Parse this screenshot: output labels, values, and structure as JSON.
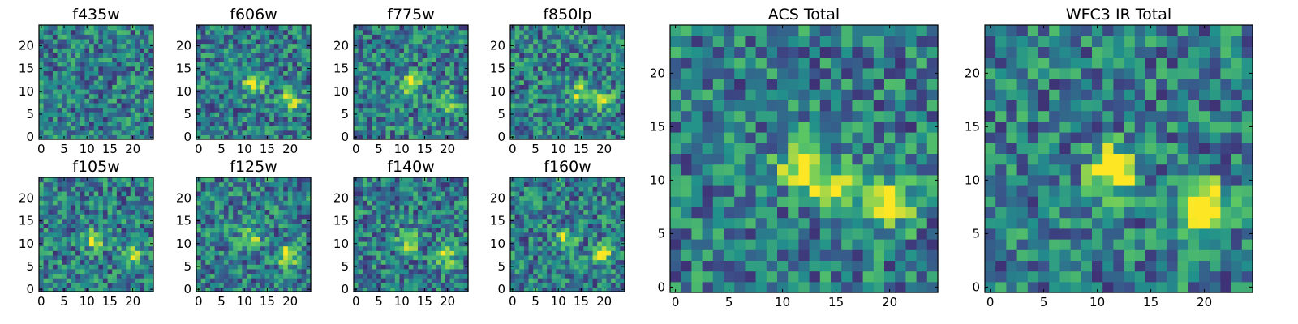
{
  "figure": {
    "colormap": [
      "#440154",
      "#3b528b",
      "#21918c",
      "#5ec962",
      "#fde725"
    ]
  },
  "chart_data": [
    {
      "type": "heatmap",
      "title": "f435w",
      "xticks": [
        "0",
        "5",
        "10",
        "15",
        "20"
      ],
      "yticks": [
        "0",
        "5",
        "10",
        "15",
        "20"
      ],
      "xlim": [
        0,
        25
      ],
      "ylim": [
        0,
        25
      ],
      "grid": false,
      "sources": []
    },
    {
      "type": "heatmap",
      "title": "f606w",
      "xticks": [
        "0",
        "5",
        "10",
        "15",
        "20"
      ],
      "yticks": [
        "0",
        "5",
        "10",
        "15",
        "20"
      ],
      "xlim": [
        0,
        25
      ],
      "ylim": [
        0,
        25
      ],
      "grid": false,
      "sources": [
        [
          12.5,
          12,
          0.55
        ],
        [
          20.5,
          8.5,
          0.5
        ]
      ]
    },
    {
      "type": "heatmap",
      "title": "f775w",
      "xticks": [
        "0",
        "5",
        "10",
        "15",
        "20"
      ],
      "yticks": [
        "0",
        "5",
        "10",
        "15",
        "20"
      ],
      "xlim": [
        0,
        25
      ],
      "ylim": [
        0,
        25
      ],
      "grid": false,
      "sources": [
        [
          12.5,
          12,
          0.6
        ],
        [
          20.5,
          8.5,
          0.45
        ]
      ]
    },
    {
      "type": "heatmap",
      "title": "f850lp",
      "xticks": [
        "0",
        "5",
        "10",
        "15",
        "20"
      ],
      "yticks": [
        "0",
        "5",
        "10",
        "15",
        "20"
      ],
      "xlim": [
        0,
        25
      ],
      "ylim": [
        0,
        25
      ],
      "grid": false,
      "sources": [
        [
          15.5,
          10,
          0.5
        ],
        [
          20.5,
          8.5,
          0.4
        ]
      ]
    },
    {
      "type": "heatmap",
      "title": "f105w",
      "xticks": [
        "0",
        "5",
        "10",
        "15",
        "20"
      ],
      "yticks": [
        "0",
        "5",
        "10",
        "15",
        "20"
      ],
      "xlim": [
        0,
        25
      ],
      "ylim": [
        0,
        25
      ],
      "grid": false,
      "sources": [
        [
          12,
          11.5,
          0.45
        ],
        [
          20,
          8,
          0.45
        ]
      ]
    },
    {
      "type": "heatmap",
      "title": "f125w",
      "xticks": [
        "0",
        "5",
        "10",
        "15",
        "20"
      ],
      "yticks": [
        "0",
        "5",
        "10",
        "15",
        "20"
      ],
      "xlim": [
        0,
        25
      ],
      "ylim": [
        0,
        25
      ],
      "grid": false,
      "sources": [
        [
          12,
          12,
          0.45
        ],
        [
          20,
          8,
          0.55
        ]
      ]
    },
    {
      "type": "heatmap",
      "title": "f140w",
      "xticks": [
        "0",
        "5",
        "10",
        "15",
        "20"
      ],
      "yticks": [
        "0",
        "5",
        "10",
        "15",
        "20"
      ],
      "xlim": [
        0,
        25
      ],
      "ylim": [
        0,
        25
      ],
      "grid": false,
      "sources": [
        [
          12,
          11,
          0.5
        ],
        [
          20,
          8,
          0.55
        ]
      ]
    },
    {
      "type": "heatmap",
      "title": "f160w",
      "xticks": [
        "0",
        "5",
        "10",
        "15",
        "20"
      ],
      "yticks": [
        "0",
        "5",
        "10",
        "15",
        "20"
      ],
      "xlim": [
        0,
        25
      ],
      "ylim": [
        0,
        25
      ],
      "grid": false,
      "sources": [
        [
          12,
          11.5,
          0.45
        ],
        [
          20,
          8,
          0.55
        ]
      ]
    },
    {
      "type": "heatmap",
      "title": "ACS Total",
      "xticks": [
        "0",
        "5",
        "10",
        "15",
        "20"
      ],
      "yticks": [
        "0",
        "5",
        "10",
        "15",
        "20"
      ],
      "xlim": [
        0,
        25
      ],
      "ylim": [
        0,
        25
      ],
      "grid": false,
      "sources": [
        [
          12.5,
          12,
          0.75
        ],
        [
          15.5,
          9.5,
          0.5
        ],
        [
          20.5,
          8.5,
          0.7
        ]
      ]
    },
    {
      "type": "heatmap",
      "title": "WFC3 IR Total",
      "xticks": [
        "0",
        "5",
        "10",
        "15",
        "20"
      ],
      "yticks": [
        "0",
        "5",
        "10",
        "15",
        "20"
      ],
      "xlim": [
        0,
        25
      ],
      "ylim": [
        0,
        25
      ],
      "grid": false,
      "sources": [
        [
          12,
          11.5,
          0.75
        ],
        [
          20.5,
          8,
          0.85
        ]
      ]
    }
  ]
}
